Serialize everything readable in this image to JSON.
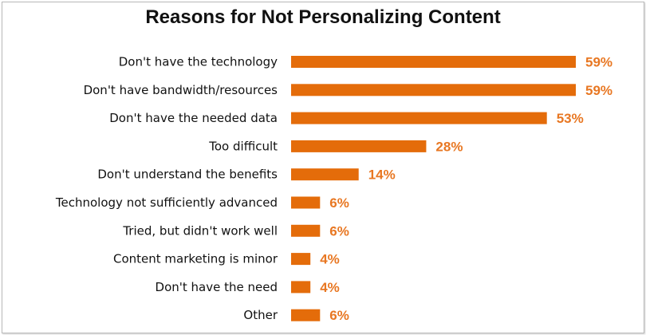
{
  "chart_data": {
    "type": "bar",
    "orientation": "horizontal",
    "title": "Reasons for Not Personalizing Content",
    "categories": [
      "Don't have the technology",
      "Don't have bandwidth/resources",
      "Don't have the needed data",
      "Too difficult",
      "Don't understand the benefits",
      "Technology not sufficiently advanced",
      "Tried, but didn't work well",
      "Content marketing is minor",
      "Don't have the need",
      "Other"
    ],
    "values": [
      59,
      59,
      53,
      28,
      14,
      6,
      6,
      4,
      4,
      6
    ],
    "value_labels": [
      "59%",
      "59%",
      "53%",
      "28%",
      "14%",
      "6%",
      "6%",
      "4%",
      "4%",
      "6%"
    ],
    "xlim": [
      0,
      59
    ],
    "grid": false,
    "legend": "none",
    "colors": {
      "bar": "#e46c0a",
      "value_label": "#e87722"
    }
  }
}
